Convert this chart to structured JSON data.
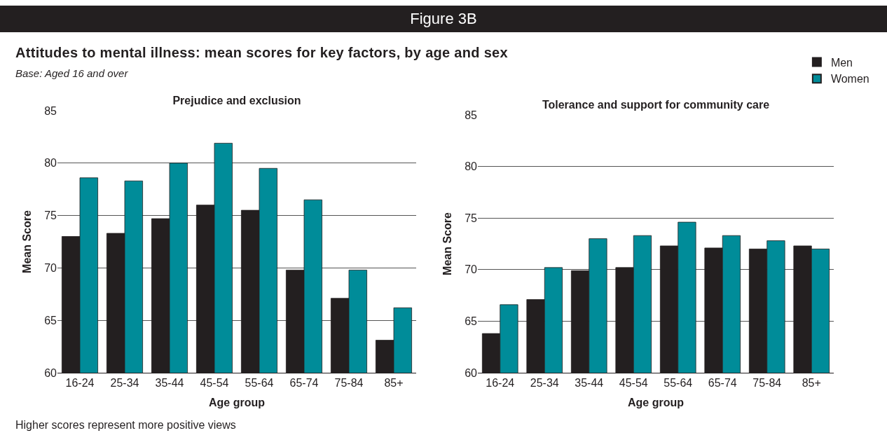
{
  "chart_data": [
    {
      "type": "other",
      "title": "Figure 3B",
      "subtitle": "Attitudes to mental illness: mean scores for key factors, by age and sex",
      "annotations": [
        "Base: Aged 16 and over",
        "Higher scores represent more positive views"
      ]
    },
    {
      "type": "bar",
      "title": "Prejudice and exclusion",
      "xlabel": "Age group",
      "ylabel": "Mean Score",
      "categories": [
        "16-24",
        "25-34",
        "35-44",
        "45-54",
        "55-64",
        "65-74",
        "75-84",
        "85+"
      ],
      "series": [
        {
          "color": "#231f20",
          "values": [
            73.0,
            73.3,
            74.7,
            76.0,
            75.5,
            69.8,
            67.1,
            63.1
          ]
        },
        {
          "color": "#008c99",
          "values": [
            78.6,
            78.3,
            80.0,
            81.9,
            79.5,
            76.5,
            69.8,
            66.2
          ]
        }
      ],
      "ylim": [
        60,
        85
      ],
      "yticks": [
        60,
        65,
        70,
        75,
        80,
        85
      ],
      "grid": "y"
    },
    {
      "type": "bar",
      "title": "Tolerance and support for community care",
      "xlabel": "Age group",
      "ylabel": "Mean Score",
      "categories": [
        "16-24",
        "25-34",
        "35-44",
        "45-54",
        "55-64",
        "65-74",
        "75-84",
        "85+"
      ],
      "series": [
        {
          "name": "Men",
          "color": "#231f20",
          "values": [
            63.8,
            67.1,
            69.9,
            70.2,
            72.3,
            72.1,
            72.0,
            72.3
          ]
        },
        {
          "name": "Women",
          "color": "#008c99",
          "values": [
            66.6,
            70.2,
            73.0,
            73.3,
            74.6,
            73.3,
            72.8,
            72.0
          ]
        }
      ],
      "ylim": [
        60,
        85
      ],
      "yticks": [
        60,
        65,
        70,
        75,
        80,
        85
      ],
      "grid": "y",
      "legend": "top right"
    }
  ]
}
